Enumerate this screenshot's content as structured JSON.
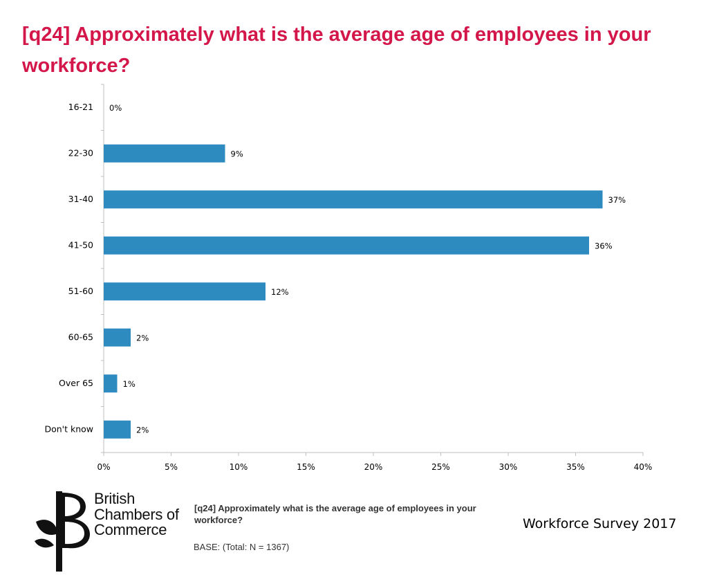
{
  "header": {
    "title": "[q24] Approximately what is the average age of employees in your workforce?"
  },
  "chart_data": {
    "type": "bar",
    "orientation": "horizontal",
    "categories": [
      "16-21",
      "22-30",
      "31-40",
      "41-50",
      "51-60",
      "60-65",
      "Over 65",
      "Don't know"
    ],
    "values": [
      0,
      9,
      37,
      36,
      12,
      2,
      1,
      2
    ],
    "value_labels": [
      "0%",
      "9%",
      "37%",
      "36%",
      "12%",
      "2%",
      "1%",
      "2%"
    ],
    "xlim": [
      0,
      40
    ],
    "xticks": [
      0,
      5,
      10,
      15,
      20,
      25,
      30,
      35,
      40
    ],
    "xtick_labels": [
      "0%",
      "5%",
      "10%",
      "15%",
      "20%",
      "25%",
      "30%",
      "35%",
      "40%"
    ],
    "bar_color": "#2e8bc0",
    "grid": false
  },
  "footer": {
    "question": "[q24] Approximately what is the average age of employees in your workforce?",
    "base": "BASE: (Total: N = 1367)",
    "survey": "Workforce Survey 2017"
  },
  "logo": {
    "line1": "British",
    "line2": "Chambers of",
    "line3": "Commerce"
  }
}
